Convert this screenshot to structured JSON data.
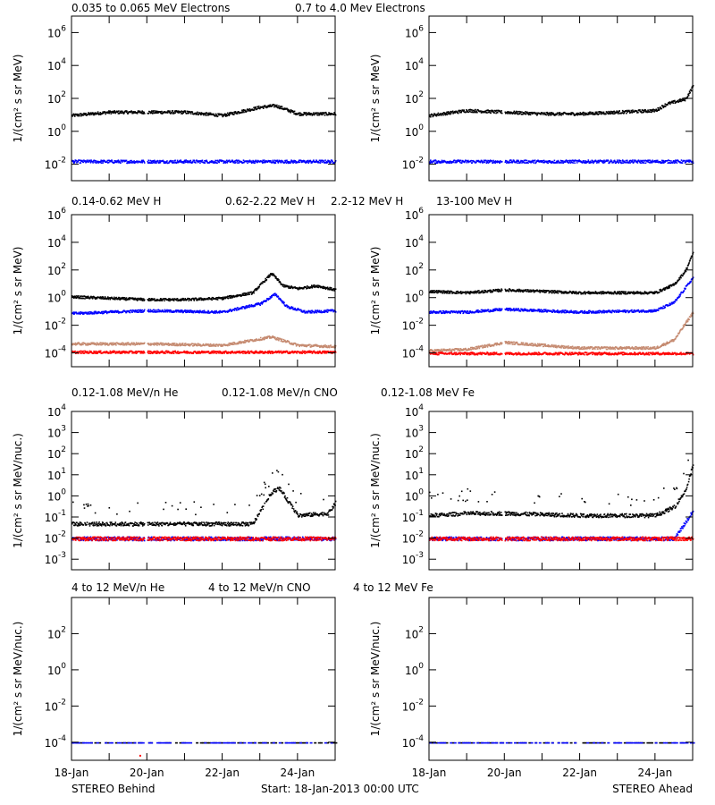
{
  "colors": {
    "black": "#000000",
    "blue": "#0000ff",
    "tan": "#c58a70",
    "red": "#ff0000"
  },
  "rows": [
    {
      "legend": [
        {
          "text": "0.035 to 0.065 MeV Electrons",
          "color": "#000000"
        },
        {
          "text": "0.7 to 4.0 Mev Electrons",
          "color": "#0000ff"
        }
      ],
      "ylabel": "1/(cm² s sr MeV)",
      "ymin": -3,
      "ymax": 7,
      "ticks": [
        {
          "exp": -2,
          "label": [
            "10",
            "-2"
          ]
        },
        {
          "exp": 0,
          "label": [
            "10",
            "0"
          ]
        },
        {
          "exp": 2,
          "label": [
            "10",
            "2"
          ]
        },
        {
          "exp": 4,
          "label": [
            "10",
            "4"
          ]
        },
        {
          "exp": 6,
          "label": [
            "10",
            "6"
          ]
        }
      ]
    },
    {
      "legend": [
        {
          "text": "0.14-0.62 MeV H",
          "color": "#000000"
        },
        {
          "text": "0.62-2.22 MeV H",
          "color": "#0000ff"
        },
        {
          "text": "2.2-12 MeV H",
          "color": "#c58a70"
        },
        {
          "text": "13-100 MeV H",
          "color": "#ff0000"
        }
      ],
      "ylabel": "1/(cm² s sr MeV)",
      "ymin": -5,
      "ymax": 6,
      "ticks": [
        {
          "exp": -4,
          "label": [
            "10",
            "-4"
          ]
        },
        {
          "exp": -2,
          "label": [
            "10",
            "-2"
          ]
        },
        {
          "exp": 0,
          "label": [
            "10",
            "0"
          ]
        },
        {
          "exp": 2,
          "label": [
            "10",
            "2"
          ]
        },
        {
          "exp": 4,
          "label": [
            "10",
            "4"
          ]
        },
        {
          "exp": 6,
          "label": [
            "10",
            "6"
          ]
        }
      ]
    },
    {
      "legend": [
        {
          "text": "0.12-1.08 MeV/n He",
          "color": "#000000"
        },
        {
          "text": "0.12-1.08 MeV/n CNO",
          "color": "#0000ff"
        },
        {
          "text": "0.12-1.08 MeV Fe",
          "color": "#ff0000"
        }
      ],
      "ylabel": "1/(cm² s sr MeV/nuc.)",
      "ymin": -3.5,
      "ymax": 4,
      "ticks": [
        {
          "exp": -3,
          "label": [
            "10",
            "-3"
          ]
        },
        {
          "exp": -2,
          "label": [
            "10",
            "-2"
          ]
        },
        {
          "exp": -1,
          "label": [
            "10",
            "-1"
          ]
        },
        {
          "exp": 0,
          "label": [
            "10",
            "0"
          ]
        },
        {
          "exp": 1,
          "label": [
            "10",
            "1"
          ]
        },
        {
          "exp": 2,
          "label": [
            "10",
            "2"
          ]
        },
        {
          "exp": 3,
          "label": [
            "10",
            "3"
          ]
        },
        {
          "exp": 4,
          "label": [
            "10",
            "4"
          ]
        }
      ]
    },
    {
      "legend": [
        {
          "text": "4 to 12 MeV/n He",
          "color": "#000000"
        },
        {
          "text": "4 to 12 MeV/n CNO",
          "color": "#0000ff"
        },
        {
          "text": "4 to 12 MeV Fe",
          "color": "#ff0000"
        }
      ],
      "ylabel": "1/(cm² s sr MeV/nuc.)",
      "ymin": -5,
      "ymax": 4,
      "ticks": [
        {
          "exp": -4,
          "label": [
            "10",
            "-4"
          ]
        },
        {
          "exp": -2,
          "label": [
            "10",
            "-2"
          ]
        },
        {
          "exp": 0,
          "label": [
            "10",
            "0"
          ]
        },
        {
          "exp": 2,
          "label": [
            "10",
            "2"
          ]
        }
      ]
    }
  ],
  "xaxis": {
    "start_day": 18,
    "end_day": 25,
    "labels": [
      "18-Jan",
      "20-Jan",
      "22-Jan",
      "24-Jan"
    ]
  },
  "footer": {
    "left": "STEREO Behind",
    "center": "Start: 18-Jan-2013 00:00 UTC",
    "right": "STEREO Ahead"
  },
  "chart_data": [
    {
      "type": "scatter",
      "panel": "STEREO Behind - electrons",
      "yscale": "log",
      "series": [
        {
          "name": "0.035 to 0.065 MeV Electrons",
          "color": "#000000",
          "x_day": [
            18,
            19,
            20,
            21,
            22,
            23,
            23.4,
            24,
            25
          ],
          "log10_y": [
            1.0,
            1.2,
            1.2,
            1.2,
            1.0,
            1.5,
            1.6,
            1.1,
            1.1
          ]
        },
        {
          "name": "0.7 to 4.0 Mev Electrons",
          "color": "#0000ff",
          "x_day": [
            18,
            25
          ],
          "log10_y": [
            -1.8,
            -1.8
          ]
        }
      ]
    },
    {
      "type": "scatter",
      "panel": "STEREO Ahead - electrons",
      "yscale": "log",
      "series": [
        {
          "name": "0.035 to 0.065 MeV Electrons",
          "color": "#000000",
          "x_day": [
            18,
            19,
            20,
            21,
            22,
            23,
            24,
            24.3,
            24.8,
            25
          ],
          "log10_y": [
            1.0,
            1.3,
            1.2,
            1.1,
            1.1,
            1.2,
            1.3,
            1.7,
            2.0,
            2.8
          ]
        },
        {
          "name": "0.7 to 4.0 Mev Electrons",
          "color": "#0000ff",
          "x_day": [
            18,
            25
          ],
          "log10_y": [
            -1.8,
            -1.8
          ]
        }
      ]
    },
    {
      "type": "scatter",
      "panel": "STEREO Behind - protons",
      "yscale": "log",
      "series": [
        {
          "name": "0.14-0.62 MeV H",
          "color": "#000000",
          "x_day": [
            18,
            19,
            20,
            21,
            22,
            22.8,
            23.3,
            23.6,
            24,
            24.5,
            25
          ],
          "log10_y": [
            0.1,
            0.0,
            -0.1,
            -0.1,
            0.0,
            0.4,
            1.8,
            0.9,
            0.7,
            0.9,
            0.6
          ]
        },
        {
          "name": "0.62-2.22 MeV H",
          "color": "#0000ff",
          "x_day": [
            18,
            20,
            22,
            23,
            23.4,
            23.7,
            24.2,
            25
          ],
          "log10_y": [
            -1.1,
            -0.9,
            -1.0,
            -0.4,
            0.3,
            -0.6,
            -1.0,
            -0.9
          ]
        },
        {
          "name": "2.2-12 MeV H",
          "color": "#c58a70",
          "x_day": [
            18,
            20,
            22,
            23.3,
            24,
            25
          ],
          "log10_y": [
            -3.3,
            -3.3,
            -3.4,
            -2.8,
            -3.4,
            -3.5
          ]
        },
        {
          "name": "13-100 MeV H",
          "color": "#ff0000",
          "x_day": [
            18,
            25
          ],
          "log10_y": [
            -3.9,
            -3.9
          ]
        }
      ]
    },
    {
      "type": "scatter",
      "panel": "STEREO Ahead - protons",
      "yscale": "log",
      "series": [
        {
          "name": "0.14-0.62 MeV H",
          "color": "#000000",
          "x_day": [
            18,
            19,
            20,
            22,
            24,
            24.5,
            24.8,
            25
          ],
          "log10_y": [
            0.5,
            0.4,
            0.6,
            0.4,
            0.4,
            1.0,
            2.0,
            3.3
          ]
        },
        {
          "name": "0.62-2.22 MeV H",
          "color": "#0000ff",
          "x_day": [
            18,
            19,
            20,
            22,
            24,
            24.5,
            25
          ],
          "log10_y": [
            -1.0,
            -1.0,
            -0.8,
            -1.0,
            -0.9,
            -0.3,
            1.5
          ]
        },
        {
          "name": "2.2-12 MeV H",
          "color": "#c58a70",
          "x_day": [
            18,
            19,
            20,
            22,
            24,
            24.5,
            25
          ],
          "log10_y": [
            -3.8,
            -3.7,
            -3.2,
            -3.6,
            -3.6,
            -3.0,
            -1.0
          ]
        },
        {
          "name": "13-100 MeV H",
          "color": "#ff0000",
          "x_day": [
            18,
            25
          ],
          "log10_y": [
            -4.0,
            -4.0
          ]
        }
      ]
    },
    {
      "type": "scatter",
      "panel": "STEREO Behind - heavy ions 0.12-1.08",
      "yscale": "log",
      "series": [
        {
          "name": "0.12-1.08 MeV/n He",
          "color": "#000000",
          "x_day": [
            18,
            21,
            22.8,
            23.3,
            23.5,
            24,
            24.8,
            25
          ],
          "log10_y": [
            -1.3,
            -1.3,
            -1.3,
            0.2,
            0.4,
            -0.9,
            -0.8,
            -0.3
          ]
        },
        {
          "name": "0.12-1.08 MeV/n CNO",
          "color": "#0000ff",
          "x_day": [
            18,
            25
          ],
          "log10_y": [
            -2.0,
            -2.0
          ]
        },
        {
          "name": "0.12-1.08 MeV Fe",
          "color": "#ff0000",
          "x_day": [
            18,
            25
          ],
          "log10_y": [
            -2.0,
            -2.0
          ]
        }
      ]
    },
    {
      "type": "scatter",
      "panel": "STEREO Ahead - heavy ions 0.12-1.08",
      "yscale": "log",
      "series": [
        {
          "name": "0.12-1.08 MeV/n He",
          "color": "#000000",
          "x_day": [
            18,
            19,
            20,
            22,
            24,
            24.5,
            24.8,
            25
          ],
          "log10_y": [
            -0.9,
            -0.8,
            -0.8,
            -0.9,
            -0.9,
            -0.5,
            0.3,
            1.5
          ]
        },
        {
          "name": "0.12-1.08 MeV/n CNO",
          "color": "#0000ff",
          "x_day": [
            18,
            24.5,
            25
          ],
          "log10_y": [
            -2.0,
            -2.0,
            -0.7
          ]
        },
        {
          "name": "0.12-1.08 MeV Fe",
          "color": "#ff0000",
          "x_day": [
            18,
            25
          ],
          "log10_y": [
            -2.0,
            -2.0
          ]
        }
      ]
    },
    {
      "type": "scatter",
      "panel": "STEREO Behind - heavy ions 4-12",
      "yscale": "log",
      "series": [
        {
          "name": "4 to 12 MeV/n He",
          "color": "#000000",
          "x_day": [
            18,
            25
          ],
          "log10_y": [
            -4.0,
            -4.0
          ]
        },
        {
          "name": "4 to 12 MeV/n CNO",
          "color": "#0000ff",
          "x_day": [
            18,
            25
          ],
          "log10_y": [
            -4.0,
            -4.0
          ]
        },
        {
          "name": "4 to 12 MeV Fe",
          "color": "#ff0000",
          "x_day": [
            19.8
          ],
          "log10_y": [
            -4.7
          ]
        }
      ]
    },
    {
      "type": "scatter",
      "panel": "STEREO Ahead - heavy ions 4-12",
      "yscale": "log",
      "series": [
        {
          "name": "4 to 12 MeV/n He",
          "color": "#000000",
          "x_day": [
            18,
            25
          ],
          "log10_y": [
            -4.0,
            -4.0
          ]
        },
        {
          "name": "4 to 12 MeV/n CNO",
          "color": "#0000ff",
          "x_day": [
            18,
            25
          ],
          "log10_y": [
            -4.0,
            -4.0
          ]
        },
        {
          "name": "4 to 12 MeV Fe",
          "color": "#ff0000",
          "x_day": [],
          "log10_y": []
        }
      ]
    }
  ]
}
